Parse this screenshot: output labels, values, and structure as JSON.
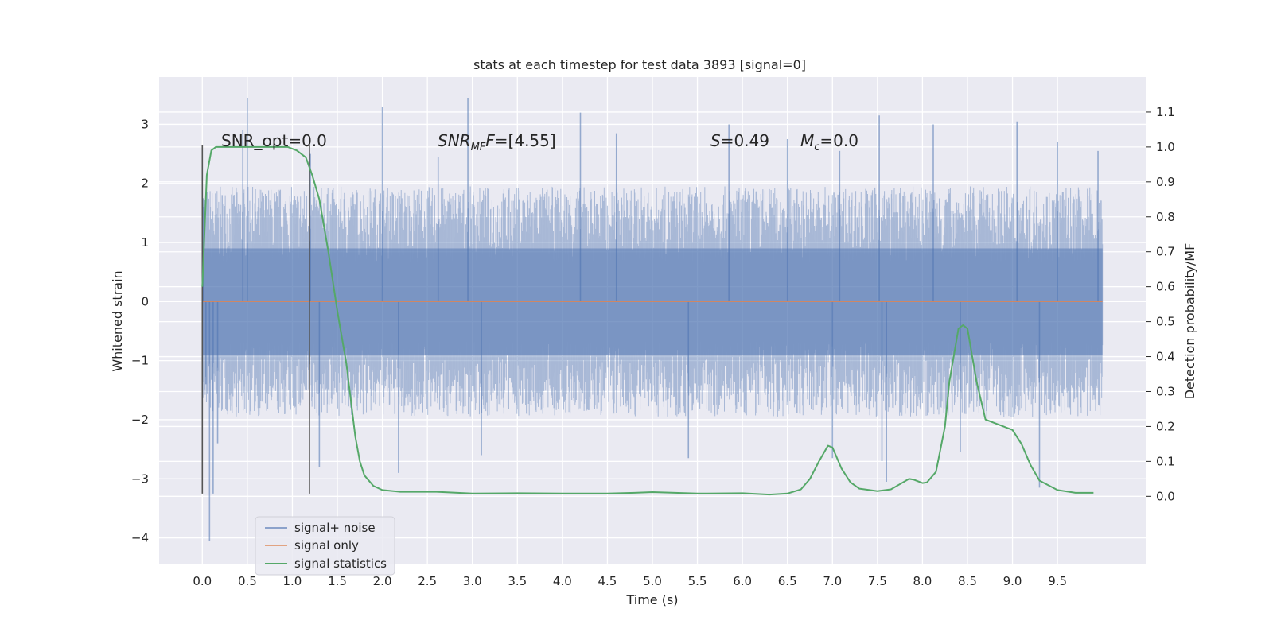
{
  "chart_data": {
    "type": "line",
    "title": "stats at each timestep for test data 3893 [signal=0]",
    "xlabel": "Time (s)",
    "ylabel": "Whitened strain",
    "y2label": "Detection probability/MF",
    "xlim": [
      -0.48,
      10.48
    ],
    "ylim": [
      -4.45,
      3.8
    ],
    "y2lim": [
      -0.195,
      1.2
    ],
    "x_ticks": [
      "0.0",
      "0.5",
      "1.0",
      "1.5",
      "2.0",
      "2.5",
      "3.0",
      "3.5",
      "4.0",
      "4.5",
      "5.0",
      "5.5",
      "6.0",
      "6.5",
      "7.0",
      "7.5",
      "8.0",
      "8.5",
      "9.0",
      "9.5"
    ],
    "y_ticks": [
      "3",
      "2",
      "1",
      "0",
      "−1",
      "−2",
      "−3",
      "−4"
    ],
    "y2_ticks": [
      "1.1",
      "1.0",
      "0.9",
      "0.8",
      "0.7",
      "0.6",
      "0.5",
      "0.4",
      "0.3",
      "0.2",
      "0.1",
      "0.0"
    ],
    "grid": true,
    "colors": {
      "background": "#eaeaf2",
      "grid": "#ffffff",
      "noise": "#4c72b0",
      "signal": "#dd8452",
      "stats": "#55a868",
      "markers": "#555555"
    },
    "annotations": {
      "snr_opt": "SNR_opt=0.0",
      "snr_mf_base": "SNR",
      "snr_mf_sub": "MF",
      "snr_mf_value": "=[4.55]",
      "s_label": "S",
      "s_value": "=0.49",
      "mc_base": "M",
      "mc_sub": "c",
      "mc_value": "=0.0"
    },
    "legend": {
      "placement": "lower-left",
      "entries": [
        "signal+ noise",
        "signal only",
        "signal statistics"
      ]
    },
    "series": [
      {
        "name": "signal+ noise",
        "kind": "noise-band",
        "x_range": [
          0.0,
          10.0
        ],
        "core_amplitude": 1.5,
        "spikes": [
          {
            "x": 0.01,
            "y": 1.75
          },
          {
            "x": 0.04,
            "y": -1.4
          },
          {
            "x": 0.08,
            "y": -4.05
          },
          {
            "x": 0.12,
            "y": -3.25
          },
          {
            "x": 0.17,
            "y": -2.4
          },
          {
            "x": 0.45,
            "y": 2.9
          },
          {
            "x": 0.5,
            "y": 3.45
          },
          {
            "x": 1.2,
            "y": 2.5
          },
          {
            "x": 1.3,
            "y": -2.8
          },
          {
            "x": 2.0,
            "y": 3.3
          },
          {
            "x": 2.18,
            "y": -2.9
          },
          {
            "x": 2.62,
            "y": 2.45
          },
          {
            "x": 2.95,
            "y": 3.45
          },
          {
            "x": 3.1,
            "y": -2.6
          },
          {
            "x": 4.2,
            "y": 3.2
          },
          {
            "x": 4.6,
            "y": 2.85
          },
          {
            "x": 5.4,
            "y": -2.65
          },
          {
            "x": 5.85,
            "y": 3.0
          },
          {
            "x": 6.5,
            "y": 2.75
          },
          {
            "x": 7.0,
            "y": -2.65
          },
          {
            "x": 7.08,
            "y": 2.55
          },
          {
            "x": 7.52,
            "y": 3.15
          },
          {
            "x": 7.55,
            "y": -2.7
          },
          {
            "x": 7.6,
            "y": -3.05
          },
          {
            "x": 8.12,
            "y": 3.0
          },
          {
            "x": 8.42,
            "y": -2.55
          },
          {
            "x": 9.05,
            "y": 3.05
          },
          {
            "x": 9.3,
            "y": -3.15
          },
          {
            "x": 9.5,
            "y": 2.7
          },
          {
            "x": 9.95,
            "y": 2.55
          }
        ]
      },
      {
        "name": "signal only",
        "x": [
          0.0,
          10.0
        ],
        "y": [
          0.0,
          0.0
        ]
      },
      {
        "name": "signal statistics",
        "axis": "right",
        "x": [
          0.0,
          0.05,
          0.1,
          0.15,
          0.25,
          0.4,
          0.6,
          0.8,
          0.95,
          1.05,
          1.15,
          1.22,
          1.3,
          1.4,
          1.5,
          1.6,
          1.7,
          1.75,
          1.8,
          1.9,
          2.0,
          2.2,
          2.6,
          3.0,
          3.5,
          4.0,
          4.5,
          4.8,
          5.0,
          5.5,
          6.0,
          6.3,
          6.5,
          6.65,
          6.75,
          6.85,
          6.95,
          7.0,
          7.1,
          7.2,
          7.3,
          7.5,
          7.65,
          7.75,
          7.85,
          7.9,
          8.0,
          8.05,
          8.15,
          8.25,
          8.3,
          8.4,
          8.45,
          8.5,
          8.6,
          8.7,
          8.8,
          9.0,
          9.1,
          9.2,
          9.3,
          9.5,
          9.7,
          9.9
        ],
        "y": [
          0.6,
          0.92,
          0.99,
          1.0,
          1.0,
          1.0,
          1.0,
          1.0,
          1.0,
          0.99,
          0.97,
          0.92,
          0.85,
          0.7,
          0.53,
          0.38,
          0.17,
          0.1,
          0.06,
          0.03,
          0.018,
          0.013,
          0.013,
          0.008,
          0.009,
          0.008,
          0.008,
          0.01,
          0.012,
          0.008,
          0.009,
          0.005,
          0.008,
          0.02,
          0.05,
          0.1,
          0.145,
          0.14,
          0.08,
          0.04,
          0.022,
          0.015,
          0.02,
          0.035,
          0.05,
          0.048,
          0.038,
          0.04,
          0.07,
          0.2,
          0.33,
          0.48,
          0.49,
          0.48,
          0.33,
          0.22,
          0.21,
          0.19,
          0.15,
          0.09,
          0.045,
          0.018,
          0.01,
          0.01
        ]
      }
    ],
    "vertical_markers": [
      {
        "x": 0.0,
        "y_from": -3.25,
        "y_to": 2.65
      },
      {
        "x": 1.19,
        "y_from": -3.25,
        "y_to": 2.65
      }
    ]
  }
}
